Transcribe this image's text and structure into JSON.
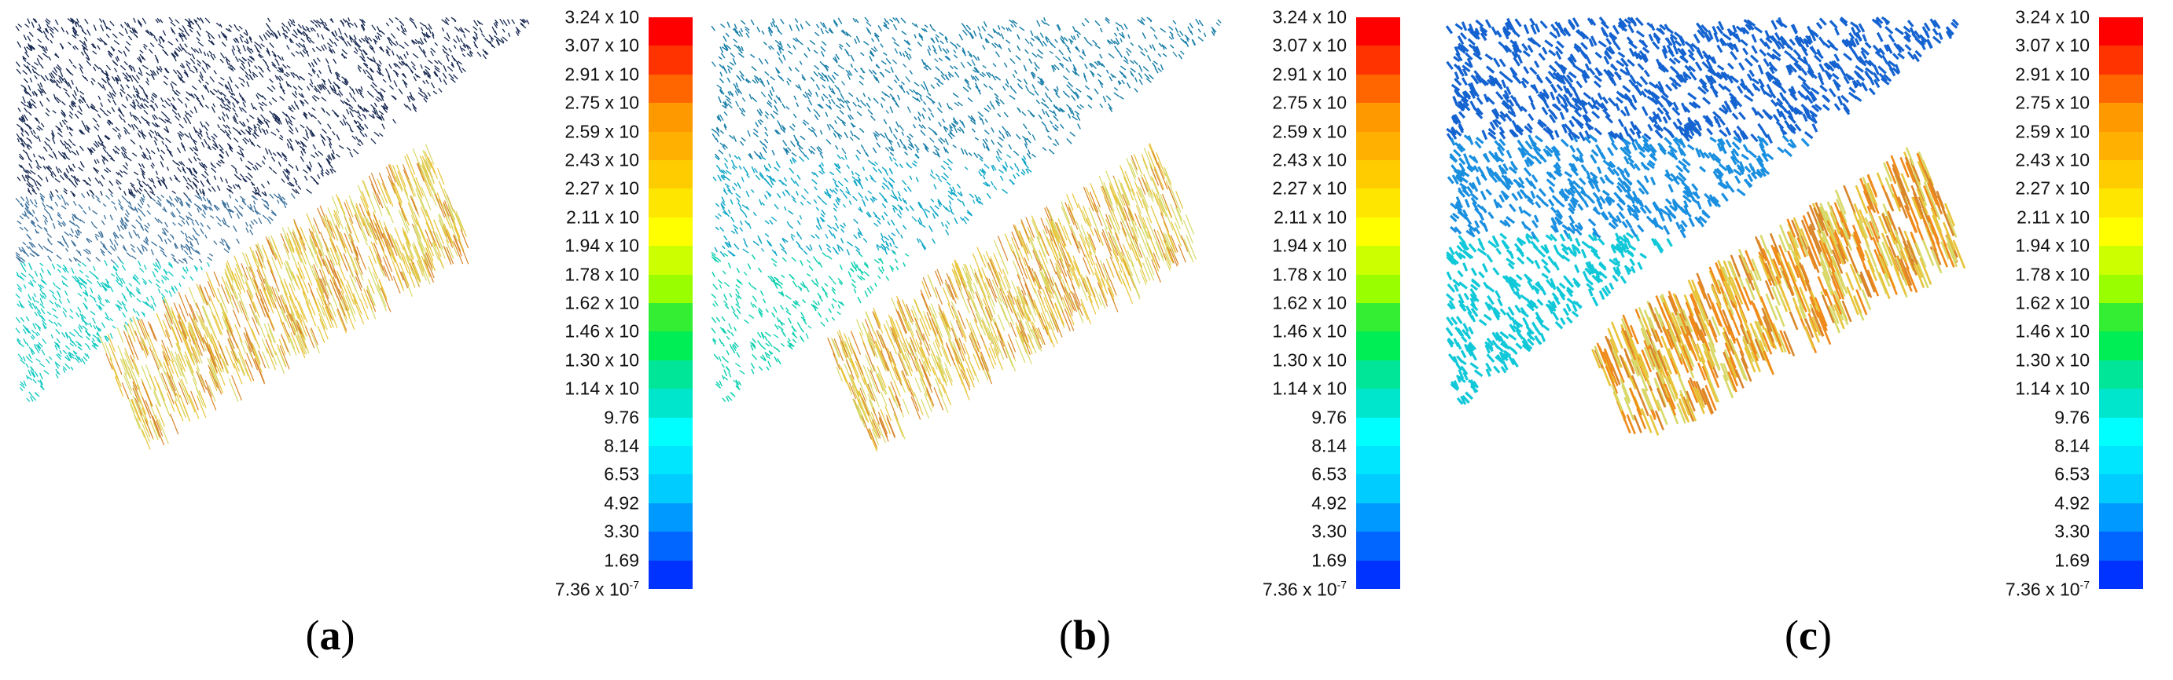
{
  "panels": [
    {
      "id": "a",
      "caption_open": "(",
      "caption_letter": "a",
      "caption_close": ")",
      "density": "sparse"
    },
    {
      "id": "b",
      "caption_open": "(",
      "caption_letter": "b",
      "caption_close": ")",
      "density": "medium"
    },
    {
      "id": "c",
      "caption_open": "(",
      "caption_letter": "c",
      "caption_close": ")",
      "density": "dense"
    }
  ],
  "colorbar": {
    "labels": [
      "3.24 x 10",
      "3.07 x 10",
      "2.91 x 10",
      "2.75 x 10",
      "2.59 x 10",
      "2.43 x 10",
      "2.27 x 10",
      "2.11 x 10",
      "1.94 x 10",
      "1.78 x 10",
      "1.62 x 10",
      "1.46 x 10",
      "1.30 x 10",
      "1.14 x 10",
      "9.76",
      "8.14",
      "6.53",
      "4.92",
      "3.30",
      "1.69",
      "7.36 x 10"
    ],
    "min_exponent": "-7",
    "colors": [
      "#ff0000",
      "#ff3300",
      "#ff6600",
      "#ff9900",
      "#ffb000",
      "#ffcc00",
      "#ffe600",
      "#ffff00",
      "#ccff00",
      "#99ff00",
      "#33ee33",
      "#00ee55",
      "#00e699",
      "#00e6cc",
      "#00ffff",
      "#00e6ff",
      "#00ccff",
      "#0099ff",
      "#0066ff",
      "#0033ff"
    ]
  }
}
